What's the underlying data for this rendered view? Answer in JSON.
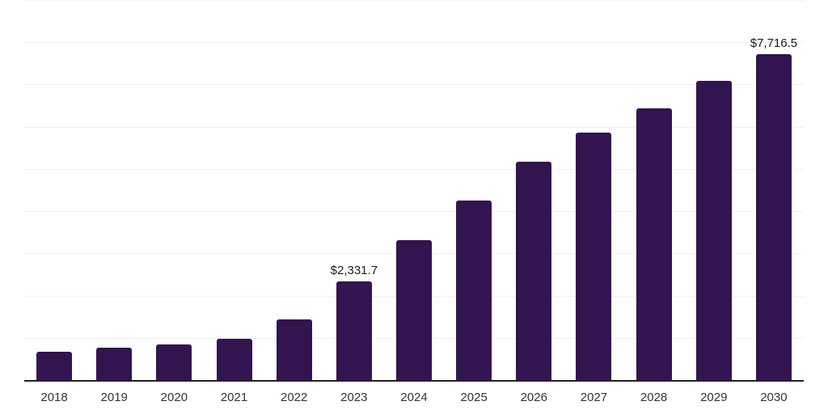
{
  "chart_data": {
    "type": "bar",
    "title": "",
    "xlabel": "",
    "ylabel": "",
    "categories": [
      "2018",
      "2019",
      "2020",
      "2021",
      "2022",
      "2023",
      "2024",
      "2025",
      "2026",
      "2027",
      "2028",
      "2029",
      "2030"
    ],
    "values": [
      675,
      770,
      850,
      985,
      1445,
      2331.7,
      3315,
      4260,
      5165,
      5860,
      6435,
      7090,
      7716.5
    ],
    "point_labels": [
      "",
      "",
      "",
      "",
      "",
      "$2,331.7",
      "",
      "",
      "",
      "",
      "",
      "",
      "$7,716.5"
    ],
    "ylim": [
      0,
      9000
    ],
    "grid_step": 1000,
    "grid": "horizontal-only",
    "legend": "none",
    "bar_color": "#321450",
    "axis_line_color": "#222222",
    "gridline_color": "#f0f0f0",
    "tick_label_color": "#333333",
    "value_label_color": "#1a1a1a"
  }
}
